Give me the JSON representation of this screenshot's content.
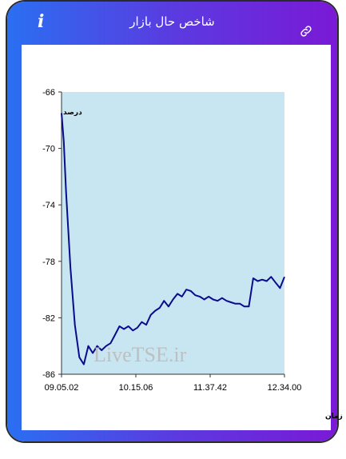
{
  "header": {
    "title": "شاخص حال بازار",
    "info_glyph": "i",
    "info_icon": "info-icon",
    "link_icon": "link-icon"
  },
  "colors": {
    "header_gradient_start": "#2a6ff2",
    "header_gradient_end": "#7a19d6",
    "plot_fill": "#c8e6f1",
    "line": "#0a0a8c"
  },
  "chart_data": {
    "type": "area",
    "ylabel": "درصد",
    "xlabel": "زمان",
    "watermark": "LiveTSE.ir",
    "ylim": [
      -86,
      -66
    ],
    "yticks": [
      -66,
      -70,
      -74,
      -78,
      -82,
      -86
    ],
    "xticks": [
      "09.05.02",
      "10.15.06",
      "11.37.42",
      "12.34.00"
    ],
    "x": [
      0,
      1,
      2,
      4,
      6,
      8,
      10,
      12,
      14,
      16,
      18,
      20,
      22,
      24,
      26,
      28,
      30,
      32,
      34,
      36,
      38,
      40,
      42,
      44,
      46,
      48,
      50,
      52,
      54,
      56,
      58,
      60,
      62,
      64,
      66,
      68,
      70,
      72,
      74,
      76,
      78,
      80,
      82,
      84,
      86,
      88,
      90,
      92,
      94,
      96,
      98,
      100
    ],
    "y": [
      -67.5,
      -69.5,
      -73.0,
      -78.5,
      -82.5,
      -84.8,
      -85.3,
      -84.0,
      -84.5,
      -84.0,
      -84.3,
      -84.0,
      -83.8,
      -83.2,
      -82.6,
      -82.8,
      -82.6,
      -82.9,
      -82.7,
      -82.3,
      -82.5,
      -81.8,
      -81.5,
      -81.3,
      -80.8,
      -81.2,
      -80.7,
      -80.3,
      -80.5,
      -80.0,
      -80.1,
      -80.4,
      -80.5,
      -80.7,
      -80.5,
      -80.7,
      -80.8,
      -80.6,
      -80.8,
      -80.9,
      -81.0,
      -81.0,
      -81.2,
      -81.2,
      -79.2,
      -79.4,
      -79.3,
      -79.4,
      -79.1,
      -79.5,
      -79.9,
      -79.1
    ]
  }
}
